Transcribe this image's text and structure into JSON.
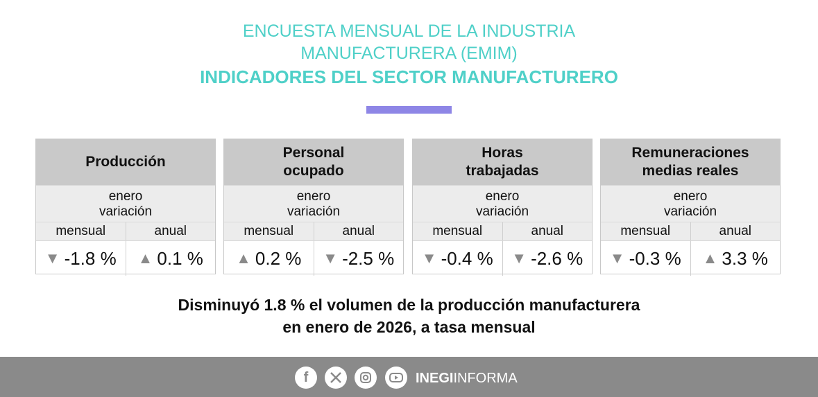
{
  "header": {
    "line1": "ENCUESTA MENSUAL DE LA INDUSTRIA",
    "line2": "MANUFACTURERA (EMIM)",
    "line3": "INDICADORES DEL SECTOR MANUFACTURERO"
  },
  "cards": [
    {
      "title_line1": "Producción",
      "title_line2": "",
      "period": "enero",
      "subtitle": "variación",
      "col1": "mensual",
      "col2": "anual",
      "val1": "-1.8 %",
      "dir1": "down",
      "val2": "0.1 %",
      "dir2": "up"
    },
    {
      "title_line1": "Personal",
      "title_line2": "ocupado",
      "period": "enero",
      "subtitle": "variación",
      "col1": "mensual",
      "col2": "anual",
      "val1": "0.2 %",
      "dir1": "up",
      "val2": "-2.5 %",
      "dir2": "down"
    },
    {
      "title_line1": "Horas",
      "title_line2": "trabajadas",
      "period": "enero",
      "subtitle": "variación",
      "col1": "mensual",
      "col2": "anual",
      "val1": "-0.4 %",
      "dir1": "down",
      "val2": "-2.6 %",
      "dir2": "down"
    },
    {
      "title_line1": "Remuneraciones",
      "title_line2": "medias reales",
      "period": "enero",
      "subtitle": "variación",
      "col1": "mensual",
      "col2": "anual",
      "val1": "-0.3 %",
      "dir1": "down",
      "val2": "3.3 %",
      "dir2": "up"
    }
  ],
  "arrows": {
    "up": "▲",
    "down": "▼"
  },
  "summary": {
    "line1": "Disminuyó 1.8 % el volumen de la producción manufacturera",
    "line2": "en enero de 2026, a tasa mensual"
  },
  "footer": {
    "brand_bold": "INEGI",
    "brand_rest": "INFORMA",
    "icons": [
      "facebook-icon",
      "x-icon",
      "instagram-icon",
      "youtube-icon"
    ]
  },
  "colors": {
    "title": "#4fd0c8",
    "accent": "#8e86e6",
    "footer": "#8a8a8a",
    "card_head": "#c9c9c9"
  }
}
